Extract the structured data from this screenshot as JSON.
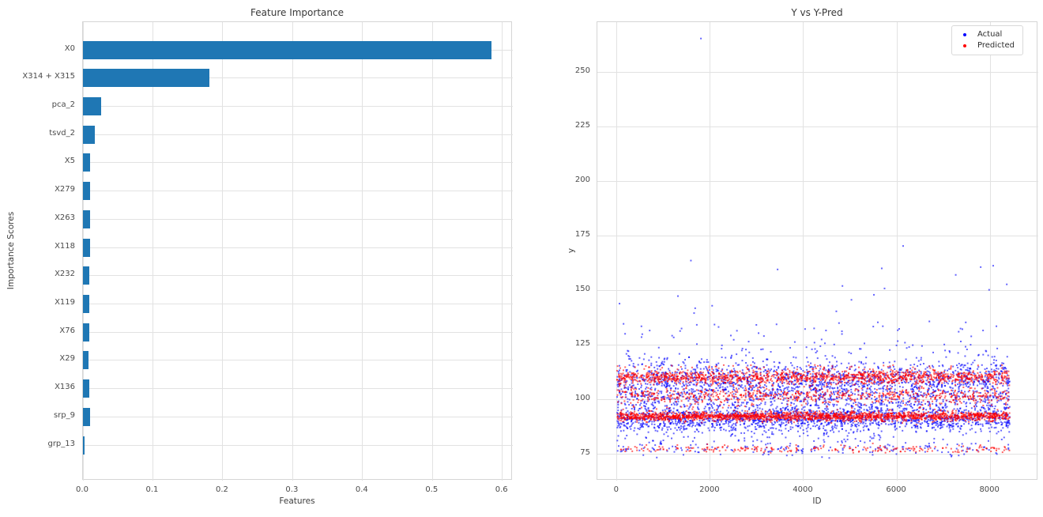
{
  "figure": {
    "background": "#ffffff"
  },
  "chart_data": [
    {
      "type": "bar",
      "orientation": "horizontal",
      "title": "Feature Importance",
      "xlabel": "Features",
      "ylabel": "Importance Scores",
      "categories": [
        "X0",
        "X314 + X315",
        "pca_2",
        "tsvd_2",
        "X5",
        "X279",
        "X263",
        "X118",
        "X232",
        "X119",
        "X76",
        "X29",
        "X136",
        "srp_9",
        "grp_13"
      ],
      "values": [
        0.584,
        0.181,
        0.026,
        0.017,
        0.0104,
        0.0097,
        0.0099,
        0.0098,
        0.0093,
        0.0092,
        0.009,
        0.0084,
        0.0087,
        0.0097,
        0.002
      ],
      "bar_color": "#1f77b4",
      "xlim": [
        0,
        0.615
      ],
      "xticks": {
        "values": [
          0.0,
          0.1,
          0.2,
          0.3,
          0.4,
          0.5,
          0.6
        ],
        "labels": [
          "0.0",
          "0.1",
          "0.2",
          "0.3",
          "0.4",
          "0.5",
          "0.6"
        ]
      },
      "grid": true
    },
    {
      "type": "scatter",
      "title": "Y vs Y-Pred",
      "xlabel": "ID",
      "ylabel": "y",
      "xlim": [
        -420,
        9030
      ],
      "ylim": [
        63,
        273
      ],
      "xticks": {
        "values": [
          0,
          2000,
          4000,
          6000,
          8000
        ],
        "labels": [
          "0",
          "2000",
          "4000",
          "6000",
          "8000"
        ]
      },
      "yticks": {
        "values": [
          75,
          100,
          125,
          150,
          175,
          200,
          225,
          250
        ],
        "labels": [
          "75",
          "100",
          "125",
          "150",
          "175",
          "200",
          "225",
          "250"
        ]
      },
      "grid": true,
      "legend": [
        {
          "label": "Actual",
          "color": "#0000ff"
        },
        {
          "label": "Predicted",
          "color": "#ff0000"
        }
      ],
      "series": [
        {
          "name": "Actual",
          "color": "#0000ff",
          "alpha": 0.6,
          "n": 4200,
          "x_range": [
            0,
            8420
          ],
          "y_clamp": [
            72.8,
            171
          ],
          "bands": [
            {
              "type": "gauss",
              "center": 91.5,
              "sigma": 3.0,
              "w": 0.36
            },
            {
              "type": "gauss",
              "center": 109.5,
              "sigma": 4.0,
              "w": 0.26
            },
            {
              "type": "gauss",
              "center": 101.0,
              "sigma": 3.5,
              "w": 0.15
            },
            {
              "type": "gauss",
              "center": 77.0,
              "sigma": 1.5,
              "w": 0.04
            },
            {
              "type": "uniform",
              "range": [
                120,
                136
              ],
              "w": 0.022
            },
            {
              "type": "uniform",
              "range": [
                136,
                171
              ],
              "w": 0.006
            },
            {
              "type": "uniform",
              "range": [
                78,
                120
              ],
              "w": 0.162
            }
          ],
          "outliers": [
            [
              1800,
              265.5
            ]
          ]
        },
        {
          "name": "Predicted",
          "color": "#ff0000",
          "alpha": 0.6,
          "n": 4200,
          "x_range": [
            0,
            8420
          ],
          "y_clamp": [
            75.8,
            117.5
          ],
          "bands": [
            {
              "type": "gauss",
              "center": 92.4,
              "sigma": 1.0,
              "w": 0.45
            },
            {
              "type": "gauss",
              "center": 110.4,
              "sigma": 1.5,
              "w": 0.29
            },
            {
              "type": "gauss",
              "center": 102.0,
              "sigma": 1.7,
              "w": 0.13
            },
            {
              "type": "gauss",
              "center": 77.5,
              "sigma": 0.9,
              "w": 0.055
            },
            {
              "type": "uniform",
              "range": [
                95,
                116
              ],
              "w": 0.075
            }
          ],
          "outliers": []
        }
      ]
    }
  ]
}
